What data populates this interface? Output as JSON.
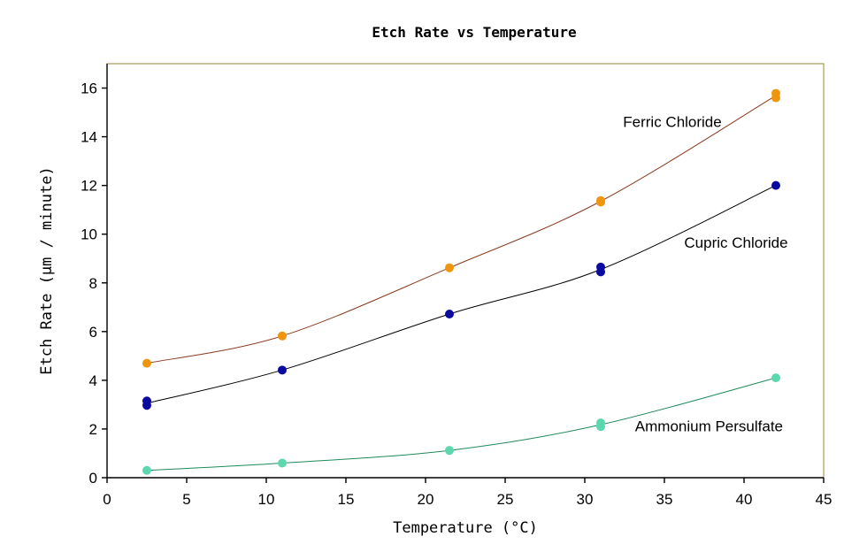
{
  "chart_data": {
    "type": "line",
    "title": "Etch Rate vs Temperature",
    "xlabel": "Temperature (°C)",
    "ylabel": "Etch Rate (μm / minute)",
    "xlim": [
      0,
      45
    ],
    "ylim": [
      0,
      17
    ],
    "x_ticks": [
      0,
      5,
      10,
      15,
      20,
      25,
      30,
      35,
      40,
      45
    ],
    "y_ticks": [
      0,
      2,
      4,
      6,
      8,
      10,
      12,
      14,
      16
    ],
    "grid": false,
    "legend": "inline labels",
    "plot_border_color": "#9a8a32",
    "series": [
      {
        "name": "Ferric Chloride",
        "marker_color": "#f0960e",
        "line_color": "#8a3a1e",
        "points": [
          [
            2.5,
            4.7
          ],
          [
            11,
            5.82
          ],
          [
            21.5,
            8.62
          ],
          [
            31,
            11.32
          ],
          [
            31,
            11.38
          ],
          [
            42,
            15.6
          ],
          [
            42,
            15.78
          ]
        ]
      },
      {
        "name": "Cupric Chloride",
        "marker_color": "#0a0aa0",
        "line_color": "#000000",
        "points": [
          [
            2.5,
            2.97
          ],
          [
            2.5,
            3.15
          ],
          [
            11,
            4.42
          ],
          [
            21.5,
            6.72
          ],
          [
            31,
            8.45
          ],
          [
            31,
            8.65
          ],
          [
            42,
            12.0
          ]
        ]
      },
      {
        "name": "Ammonium Persulfate",
        "marker_color": "#5cd8ae",
        "line_color": "#1e8a5a",
        "points": [
          [
            2.5,
            0.3
          ],
          [
            11,
            0.6
          ],
          [
            21.5,
            1.12
          ],
          [
            31,
            2.1
          ],
          [
            31,
            2.25
          ],
          [
            42,
            4.1
          ]
        ]
      }
    ],
    "annotations": [
      {
        "text": "Ferric Chloride",
        "x": 35.5,
        "y": 14.4
      },
      {
        "text": "Cupric Chloride",
        "x": 39.5,
        "y": 9.45
      },
      {
        "text": "Ammonium Persulfate",
        "x": 37.8,
        "y": 1.9
      }
    ]
  }
}
